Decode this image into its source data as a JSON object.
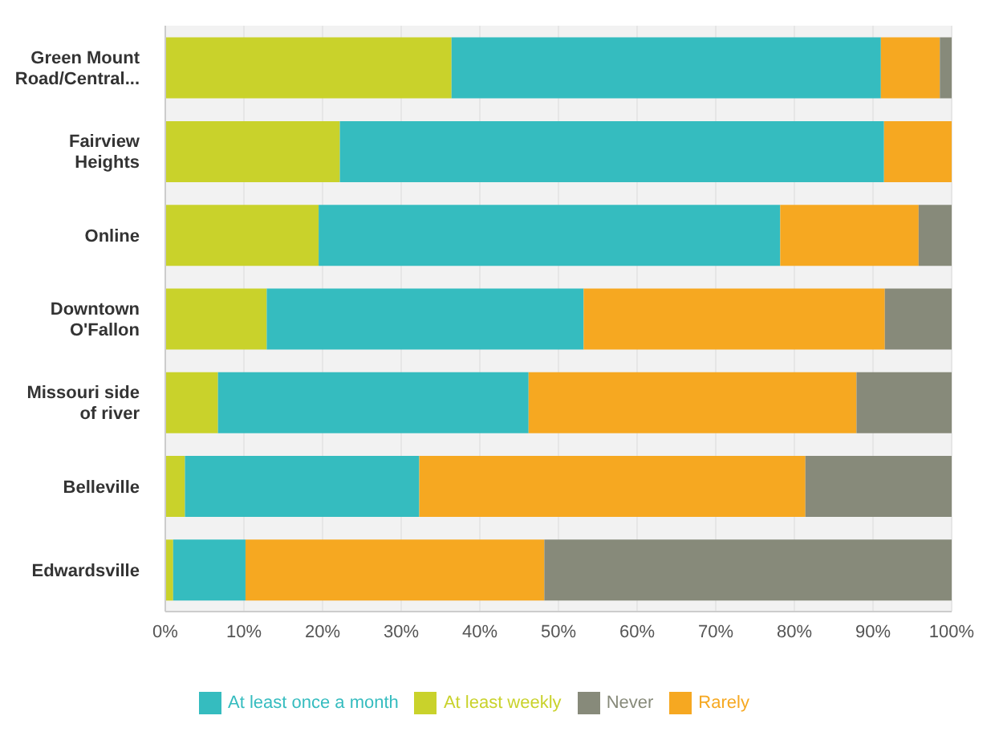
{
  "chart_data": {
    "type": "bar",
    "orientation": "horizontal",
    "stacked": true,
    "categories": [
      "Green Mount Road/Central...",
      "Fairview Heights",
      "Online",
      "Downtown O'Fallon",
      "Missouri side of river",
      "Belleville",
      "Edwardsville"
    ],
    "series": [
      {
        "name": "At least weekly",
        "color": "#c9d22b",
        "values": [
          36.4,
          22.2,
          19.5,
          12.9,
          6.7,
          2.5,
          1.0
        ]
      },
      {
        "name": "At least once a month",
        "color": "#35bcbf",
        "values": [
          54.6,
          69.2,
          58.7,
          40.3,
          39.5,
          29.8,
          9.2
        ]
      },
      {
        "name": "Rarely",
        "color": "#f6a821",
        "values": [
          7.5,
          8.6,
          17.6,
          38.3,
          41.7,
          49.1,
          38.0
        ]
      },
      {
        "name": "Never",
        "color": "#878a7a",
        "values": [
          1.5,
          0,
          4.2,
          8.5,
          12.1,
          18.6,
          51.8
        ]
      }
    ],
    "xlim": [
      0,
      100
    ],
    "xticks": [
      {
        "value": 0,
        "label": "0%"
      },
      {
        "value": 10,
        "label": "10%"
      },
      {
        "value": 20,
        "label": "20%"
      },
      {
        "value": 30,
        "label": "30%"
      },
      {
        "value": 40,
        "label": "40%"
      },
      {
        "value": 50,
        "label": "50%"
      },
      {
        "value": 60,
        "label": "60%"
      },
      {
        "value": 70,
        "label": "70%"
      },
      {
        "value": 80,
        "label": "80%"
      },
      {
        "value": 90,
        "label": "90%"
      },
      {
        "value": 100,
        "label": "100%"
      }
    ],
    "grid": "x",
    "legend": "bottom"
  }
}
